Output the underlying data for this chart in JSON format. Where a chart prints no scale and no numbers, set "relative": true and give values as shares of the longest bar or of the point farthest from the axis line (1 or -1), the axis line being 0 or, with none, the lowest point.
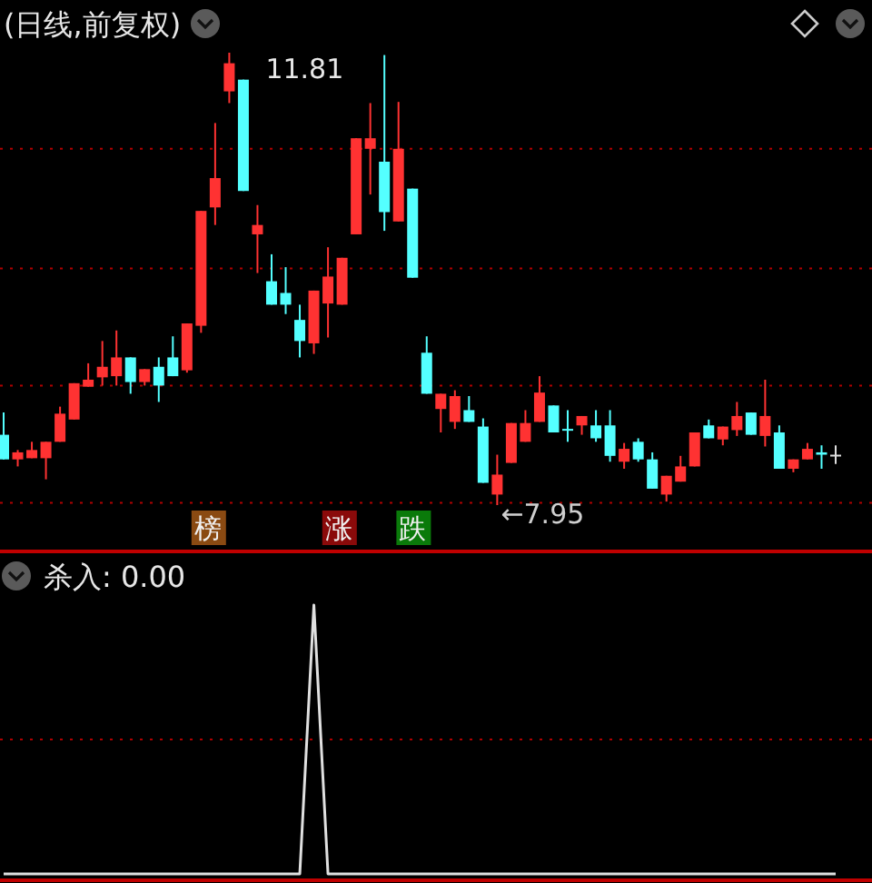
{
  "chart_data": [
    {
      "type": "candlestick",
      "title": "(日线,前复权)",
      "ref_lines": [
        {
          "axis": "y",
          "value": 10.99,
          "color": "#b00000",
          "line_style": "dotted"
        },
        {
          "axis": "y",
          "value": 9.97,
          "color": "#b00000",
          "line_style": "dotted"
        },
        {
          "axis": "y",
          "value": 8.97,
          "color": "#b00000",
          "line_style": "dotted"
        },
        {
          "axis": "y",
          "value": 7.97,
          "color": "#b00000",
          "line_style": "dotted"
        }
      ],
      "categories": [
        null,
        null,
        null,
        null,
        null,
        null,
        null,
        null,
        null,
        null,
        null,
        null,
        null,
        null,
        null,
        null,
        null,
        null,
        null,
        null,
        null,
        null,
        null,
        null,
        null,
        null,
        null,
        null,
        null,
        null,
        null,
        null,
        null,
        null,
        null,
        null,
        null,
        null,
        null,
        null,
        null,
        null,
        null,
        null,
        null,
        null,
        null,
        null,
        null,
        null,
        null,
        null,
        null,
        null,
        null,
        null,
        null,
        null,
        null,
        null
      ],
      "ohlc": [
        [
          8.55,
          8.74,
          8.34,
          8.34
        ],
        [
          8.34,
          8.42,
          8.28,
          8.4
        ],
        [
          8.35,
          8.49,
          8.35,
          8.42
        ],
        [
          8.35,
          8.49,
          8.17,
          8.49
        ],
        [
          8.49,
          8.79,
          8.49,
          8.73
        ],
        [
          8.68,
          8.99,
          8.68,
          8.99
        ],
        [
          8.96,
          9.16,
          8.96,
          9.02
        ],
        [
          9.04,
          9.35,
          8.97,
          9.13
        ],
        [
          9.05,
          9.44,
          8.97,
          9.21
        ],
        [
          9.21,
          9.21,
          8.9,
          9.0
        ],
        [
          9.0,
          9.11,
          8.97,
          9.11
        ],
        [
          9.13,
          9.21,
          8.83,
          8.97
        ],
        [
          9.21,
          9.39,
          9.05,
          9.05
        ],
        [
          9.1,
          9.5,
          9.08,
          9.5
        ],
        [
          9.48,
          10.46,
          9.42,
          10.46
        ],
        [
          10.49,
          11.21,
          10.34,
          10.74
        ],
        [
          11.48,
          11.81,
          11.38,
          11.72
        ],
        [
          11.58,
          11.58,
          10.63,
          10.63
        ],
        [
          10.26,
          10.51,
          9.93,
          10.34
        ],
        [
          9.86,
          10.09,
          9.66,
          9.66
        ],
        [
          9.76,
          9.98,
          9.58,
          9.66
        ],
        [
          9.53,
          9.66,
          9.21,
          9.35
        ],
        [
          9.33,
          9.78,
          9.24,
          9.78
        ],
        [
          9.67,
          10.15,
          9.38,
          9.9
        ],
        [
          9.66,
          10.06,
          9.66,
          10.06
        ],
        [
          10.26,
          11.08,
          10.26,
          11.08
        ],
        [
          10.99,
          11.38,
          10.6,
          11.08
        ],
        [
          10.88,
          11.79,
          10.29,
          10.45
        ],
        [
          10.37,
          11.39,
          10.37,
          10.99
        ],
        [
          10.65,
          10.65,
          9.89,
          9.89
        ],
        [
          9.25,
          9.39,
          8.9,
          8.9
        ],
        [
          8.77,
          8.9,
          8.57,
          8.9
        ],
        [
          8.66,
          8.93,
          8.6,
          8.88
        ],
        [
          8.76,
          8.88,
          8.66,
          8.66
        ],
        [
          8.62,
          8.69,
          8.14,
          8.14
        ],
        [
          8.04,
          8.38,
          7.95,
          8.21
        ],
        [
          8.31,
          8.65,
          8.31,
          8.65
        ],
        [
          8.49,
          8.76,
          8.49,
          8.65
        ],
        [
          8.66,
          9.05,
          8.66,
          8.91
        ],
        [
          8.8,
          8.8,
          8.57,
          8.57
        ],
        [
          8.6,
          8.76,
          8.49,
          8.59
        ],
        [
          8.63,
          8.71,
          8.55,
          8.71
        ],
        [
          8.63,
          8.76,
          8.49,
          8.52
        ],
        [
          8.63,
          8.76,
          8.32,
          8.37
        ],
        [
          8.32,
          8.48,
          8.26,
          8.43
        ],
        [
          8.49,
          8.52,
          8.32,
          8.34
        ],
        [
          8.34,
          8.4,
          8.09,
          8.09
        ],
        [
          8.04,
          8.2,
          7.98,
          8.2
        ],
        [
          8.15,
          8.37,
          8.15,
          8.28
        ],
        [
          8.28,
          8.57,
          8.28,
          8.57
        ],
        [
          8.63,
          8.68,
          8.52,
          8.52
        ],
        [
          8.51,
          8.62,
          8.46,
          8.62
        ],
        [
          8.59,
          8.83,
          8.54,
          8.71
        ],
        [
          8.74,
          8.74,
          8.55,
          8.55
        ],
        [
          8.54,
          9.02,
          8.45,
          8.71
        ],
        [
          8.57,
          8.63,
          8.26,
          8.26
        ],
        [
          8.26,
          8.34,
          8.23,
          8.34
        ],
        [
          8.34,
          8.48,
          8.34,
          8.43
        ],
        [
          8.4,
          8.46,
          8.26,
          8.38
        ],
        [
          8.38,
          8.46,
          8.3,
          8.38
        ]
      ],
      "annotations": [
        "11.81",
        "←7.95",
        "榜",
        "涨",
        "跌"
      ]
    },
    {
      "type": "line",
      "title": "杀入: 0.00",
      "relative": true,
      "color": "#e0e0e0",
      "ref_lines": [
        {
          "axis": "y",
          "value": 0.5,
          "color": "#b00000",
          "line_style": "dotted"
        }
      ],
      "categories": [
        null,
        null,
        null,
        null,
        null,
        null,
        null,
        null,
        null,
        null,
        null,
        null,
        null,
        null,
        null,
        null,
        null,
        null,
        null,
        null,
        null,
        null,
        null,
        null,
        null,
        null,
        null,
        null,
        null,
        null,
        null,
        null,
        null,
        null,
        null,
        null,
        null,
        null,
        null,
        null,
        null,
        null,
        null,
        null,
        null,
        null,
        null,
        null,
        null,
        null,
        null,
        null,
        null,
        null,
        null,
        null,
        null,
        null,
        null,
        null
      ],
      "values": [
        0,
        0,
        0,
        0,
        0,
        0,
        0,
        0,
        0,
        0,
        0,
        0,
        0,
        0,
        0,
        0,
        0,
        0,
        0,
        0,
        0,
        0,
        1,
        0,
        0,
        0,
        0,
        0,
        0,
        0,
        0,
        0,
        0,
        0,
        0,
        0,
        0,
        0,
        0,
        0,
        0,
        0,
        0,
        0,
        0,
        0,
        0,
        0,
        0,
        0,
        0,
        0,
        0,
        0,
        0,
        0,
        0,
        0,
        0,
        0
      ]
    }
  ]
}
